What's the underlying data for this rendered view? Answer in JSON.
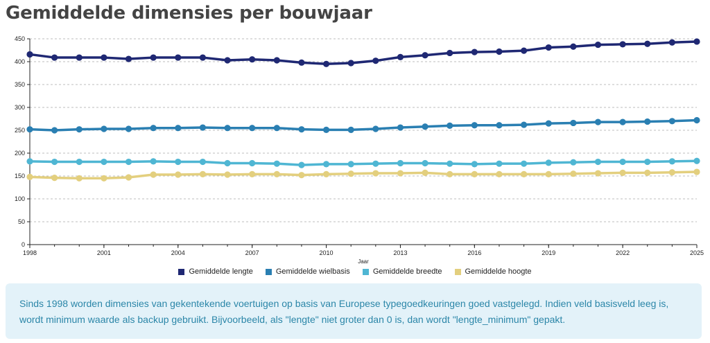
{
  "title": "Gemiddelde dimensies per bouwjaar",
  "note": {
    "line1": "Sinds 1998 worden dimensies van gekentekende voertuigen op basis van Europese typegoedkeuringen goed vastgelegd. Indien veld basisveld leeg is,",
    "line2": "wordt minimum waarde als backup gebruikt. Bijvoorbeeld, als \"lengte\" niet groter dan 0 is, dan wordt \"lengte_minimum\" gepakt."
  },
  "chart_data": {
    "type": "line",
    "xlabel": "Jaar",
    "ylabel": "",
    "xlim": [
      1998,
      2025
    ],
    "ylim": [
      0,
      450
    ],
    "x_ticks": [
      1998,
      2001,
      2004,
      2007,
      2010,
      2013,
      2016,
      2019,
      2022,
      2025
    ],
    "y_ticks": [
      0,
      50,
      100,
      150,
      200,
      250,
      300,
      350,
      400,
      450
    ],
    "grid": "horizontal-dashed",
    "legend": "bottom",
    "x": [
      1998,
      1999,
      2000,
      2001,
      2002,
      2003,
      2004,
      2005,
      2006,
      2007,
      2008,
      2009,
      2010,
      2011,
      2012,
      2013,
      2014,
      2015,
      2016,
      2017,
      2018,
      2019,
      2020,
      2021,
      2022,
      2023,
      2024,
      2025
    ],
    "series": [
      {
        "name": "Gemiddelde lengte",
        "color": "#1f2873",
        "values": [
          416,
          409,
          409,
          409,
          406,
          409,
          409,
          409,
          403,
          405,
          403,
          398,
          395,
          397,
          402,
          410,
          414,
          419,
          421,
          422,
          424,
          431,
          433,
          437,
          438,
          439,
          442,
          444
        ]
      },
      {
        "name": "Gemiddelde wielbasis",
        "color": "#2a7fb2",
        "values": [
          252,
          250,
          252,
          253,
          253,
          255,
          255,
          256,
          255,
          255,
          255,
          252,
          251,
          251,
          253,
          256,
          258,
          260,
          261,
          261,
          262,
          265,
          266,
          268,
          268,
          269,
          270,
          272
        ]
      },
      {
        "name": "Gemiddelde breedte",
        "color": "#4fb6d3",
        "values": [
          182,
          181,
          181,
          181,
          181,
          182,
          181,
          181,
          178,
          178,
          177,
          174,
          176,
          176,
          177,
          178,
          178,
          177,
          176,
          177,
          177,
          179,
          180,
          181,
          181,
          181,
          182,
          183
        ]
      },
      {
        "name": "Gemiddelde hoogte",
        "color": "#e3cf7e",
        "values": [
          148,
          146,
          145,
          145,
          147,
          153,
          153,
          154,
          153,
          154,
          154,
          152,
          154,
          155,
          156,
          156,
          157,
          154,
          154,
          154,
          154,
          154,
          155,
          156,
          157,
          157,
          158,
          159
        ]
      }
    ]
  }
}
